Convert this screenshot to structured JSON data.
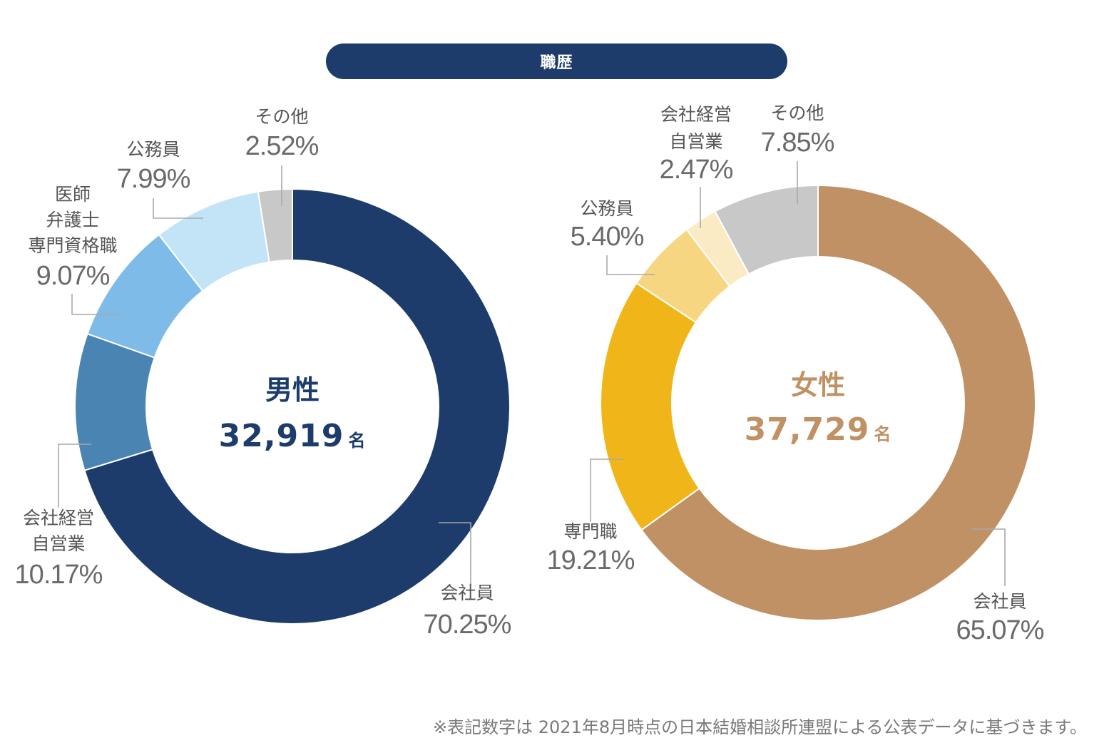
{
  "title": "職歴",
  "footnote": "※表記数字は 2021年8月時点の日本結婚相談所連盟による公表データに基づきます。",
  "chart_data": [
    {
      "type": "pie",
      "donut": true,
      "center_title": "男性",
      "center_count": "32,919",
      "center_unit": "名",
      "accent": "#1d3c6b",
      "slices": [
        {
          "label": [
            "会社員"
          ],
          "value": 70.25,
          "display": "70.25%",
          "color": "#1d3c6b"
        },
        {
          "label": [
            "会社経営",
            "自営業"
          ],
          "value": 10.17,
          "display": "10.17%",
          "color": "#4a84b2"
        },
        {
          "label": [
            "医師",
            "弁護士",
            "専門資格職"
          ],
          "value": 9.07,
          "display": "9.07%",
          "color": "#7ebbe8"
        },
        {
          "label": [
            "公務員"
          ],
          "value": 7.99,
          "display": "7.99%",
          "color": "#c3e4f7"
        },
        {
          "label": [
            "その他"
          ],
          "value": 2.52,
          "display": "2.52%",
          "color": "#c8c8c8"
        }
      ]
    },
    {
      "type": "pie",
      "donut": true,
      "center_title": "女性",
      "center_count": "37,729",
      "center_unit": "名",
      "accent": "#c09164",
      "slices": [
        {
          "label": [
            "会社員"
          ],
          "value": 65.07,
          "display": "65.07%",
          "color": "#c09164"
        },
        {
          "label": [
            "専門職"
          ],
          "value": 19.21,
          "display": "19.21%",
          "color": "#f0b619"
        },
        {
          "label": [
            "公務員"
          ],
          "value": 5.4,
          "display": "5.40%",
          "color": "#f7d681"
        },
        {
          "label": [
            "会社経営",
            "自営業"
          ],
          "value": 2.47,
          "display": "2.47%",
          "color": "#fbebc4"
        },
        {
          "label": [
            "その他"
          ],
          "value": 7.85,
          "display": "7.85%",
          "color": "#c8c8c8"
        }
      ]
    }
  ]
}
